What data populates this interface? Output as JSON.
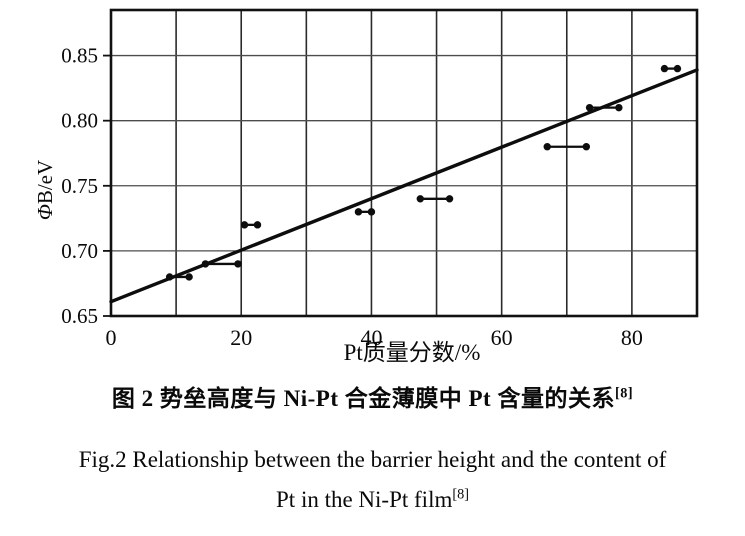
{
  "figure": {
    "caption_zh": {
      "text": "图 2 势垒高度与 Ni-Pt 合金薄膜中 Pt 含量的关系",
      "superscript": "[8]"
    },
    "caption_en": {
      "line1": "Fig.2 Relationship between the barrier height and the content of",
      "line2_text": "Pt in the Ni-Pt film",
      "line2_superscript": "[8]"
    }
  },
  "chart_data": {
    "type": "scatter",
    "title": "",
    "xlabel": "Pt质量分数/%",
    "ylabel": {
      "symbol": "Φ",
      "rest": "B/eV"
    },
    "xlim": [
      0,
      90
    ],
    "ylim": [
      0.65,
      0.885
    ],
    "xticks": [
      0,
      20,
      40,
      60,
      80
    ],
    "yticks": [
      0.65,
      0.7,
      0.75,
      0.8,
      0.85
    ],
    "grid": true,
    "x_grid_step": 10,
    "y_grid_step": 0.05,
    "legend": "none",
    "trend_line": {
      "x1": 0,
      "y1": 0.661,
      "x2": 90,
      "y2": 0.839
    },
    "series": [
      {
        "name": "barrier-height-ranges",
        "marker": "dot-pair-with-connector",
        "points": [
          {
            "x1": 9,
            "x2": 12,
            "y": 0.68
          },
          {
            "x1": 14.5,
            "x2": 19.5,
            "y": 0.69
          },
          {
            "x1": 20.5,
            "x2": 22.5,
            "y": 0.72
          },
          {
            "x1": 38,
            "x2": 40,
            "y": 0.73
          },
          {
            "x1": 47.5,
            "x2": 52,
            "y": 0.74
          },
          {
            "x1": 67,
            "x2": 73,
            "y": 0.78
          },
          {
            "x1": 73.5,
            "x2": 78,
            "y": 0.81
          },
          {
            "x1": 85,
            "x2": 87,
            "y": 0.84
          }
        ]
      }
    ],
    "colors": {
      "ink": "#0d0d0d",
      "grid_h": "#4d4d4d",
      "grid_v": "#2b2b2b",
      "frame": "#111111"
    }
  }
}
